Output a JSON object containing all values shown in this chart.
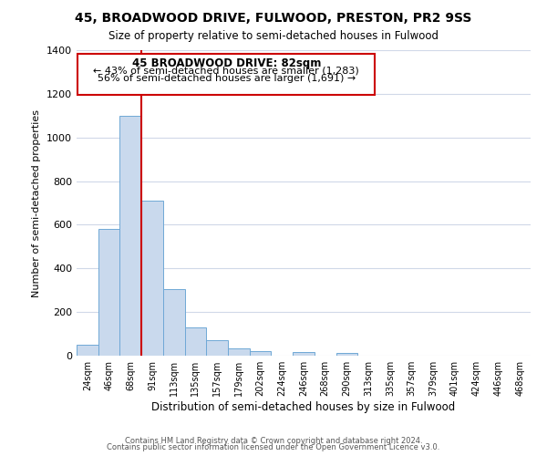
{
  "title_main": "45, BROADWOOD DRIVE, FULWOOD, PRESTON, PR2 9SS",
  "title_sub": "Size of property relative to semi-detached houses in Fulwood",
  "xlabel": "Distribution of semi-detached houses by size in Fulwood",
  "ylabel": "Number of semi-detached properties",
  "bin_labels": [
    "24sqm",
    "46sqm",
    "68sqm",
    "91sqm",
    "113sqm",
    "135sqm",
    "157sqm",
    "179sqm",
    "202sqm",
    "224sqm",
    "246sqm",
    "268sqm",
    "290sqm",
    "313sqm",
    "335sqm",
    "357sqm",
    "379sqm",
    "401sqm",
    "424sqm",
    "446sqm",
    "468sqm"
  ],
  "bar_heights": [
    50,
    580,
    1100,
    710,
    305,
    130,
    70,
    35,
    20,
    0,
    15,
    0,
    12,
    0,
    0,
    0,
    0,
    0,
    0,
    0,
    0
  ],
  "bar_color": "#c9d9ed",
  "bar_edge_color": "#6fa8d6",
  "ylim": [
    0,
    1400
  ],
  "yticks": [
    0,
    200,
    400,
    600,
    800,
    1000,
    1200,
    1400
  ],
  "property_label": "45 BROADWOOD DRIVE: 82sqm",
  "pct_smaller": 43,
  "n_smaller": 1283,
  "pct_larger": 56,
  "n_larger": 1691,
  "vline_x": 2.5,
  "annotation_box_edge": "#cc0000",
  "vline_color": "#cc0000",
  "footer1": "Contains HM Land Registry data © Crown copyright and database right 2024.",
  "footer2": "Contains public sector information licensed under the Open Government Licence v3.0.",
  "background_color": "#ffffff",
  "grid_color": "#d0d8e8"
}
